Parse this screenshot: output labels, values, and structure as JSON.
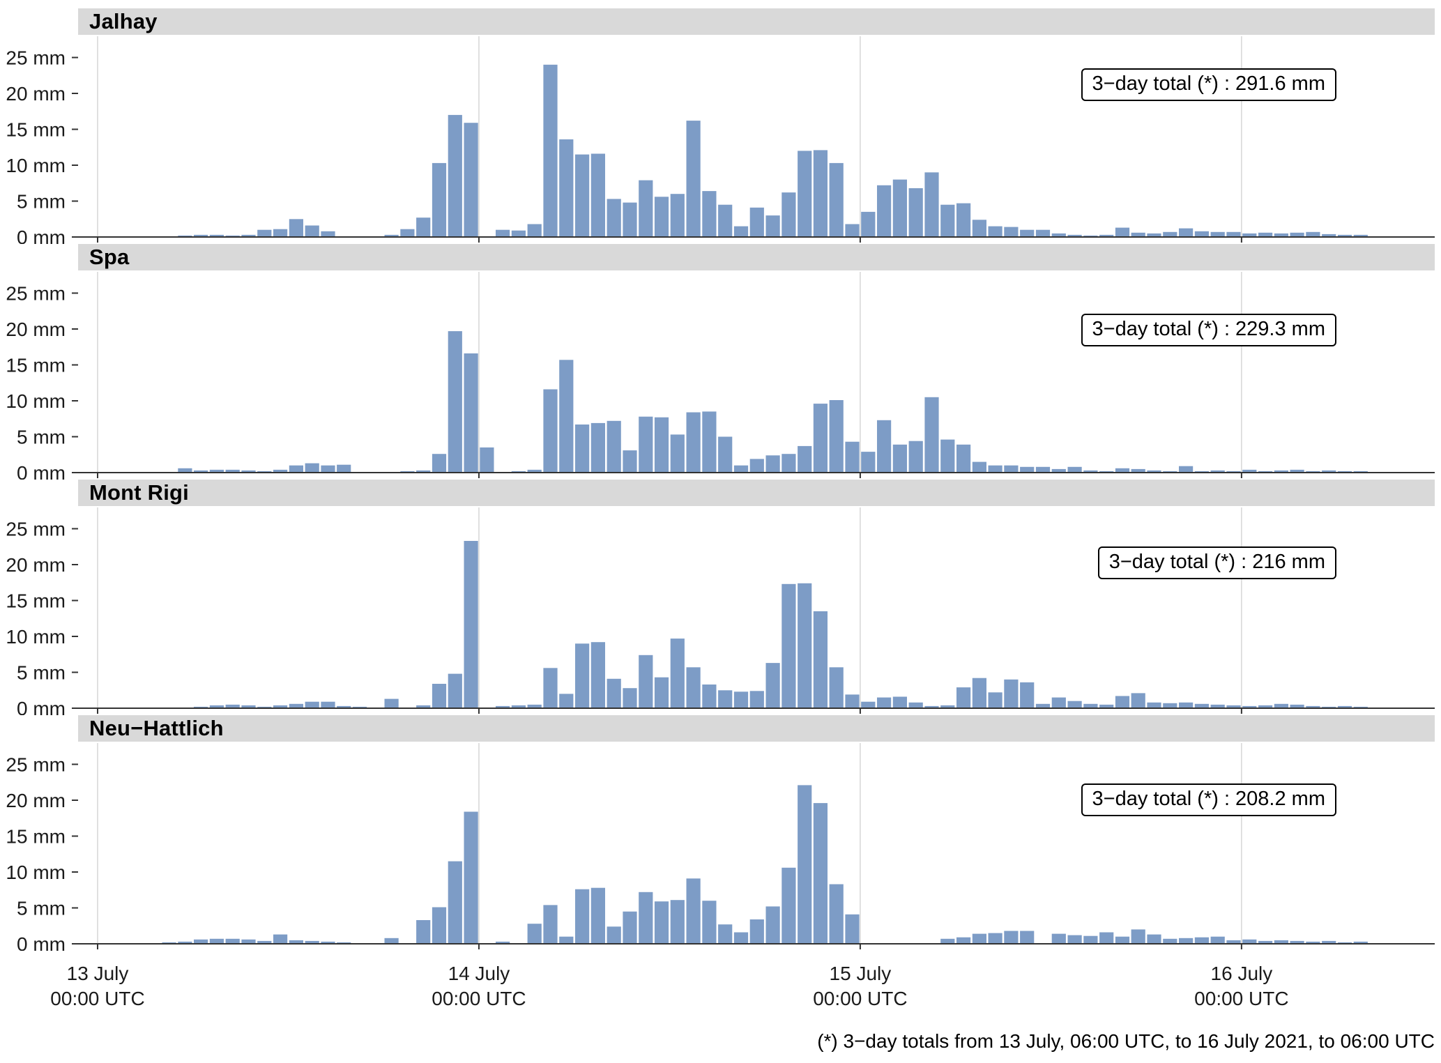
{
  "figure": {
    "footnote": "(*) 3−day totals from 13 July, 06:00 UTC, to 16 July 2021, to 06:00 UTC"
  },
  "colors": {
    "bar": "#7d9cc6",
    "strip_bg": "#d9d9d9",
    "grid": "#d6d6d6",
    "axis": "#333333"
  },
  "axis": {
    "y_ticks": [
      "0 mm",
      "5 mm",
      "10 mm",
      "15 mm",
      "20 mm",
      "25 mm"
    ],
    "ylim_mm": [
      0,
      25
    ],
    "x_ticks": [
      {
        "hour": 0,
        "date": "13 July",
        "time": "00:00 UTC"
      },
      {
        "hour": 24,
        "date": "14 July",
        "time": "00:00 UTC"
      },
      {
        "hour": 48,
        "date": "15 July",
        "time": "00:00 UTC"
      },
      {
        "hour": 72,
        "date": "16 July",
        "time": "00:00 UTC"
      }
    ]
  },
  "chart_data": [
    {
      "type": "bar",
      "station": "Jalhay",
      "total_label": "3−day total (*) : 291.6 mm",
      "total_mm": 291.6,
      "unit": "mm",
      "resolution": "hourly",
      "x_hours_from": "13 July 2021 00:00 UTC",
      "values_mm": [
        0,
        0,
        0,
        0,
        0,
        0.2,
        0.3,
        0.3,
        0.2,
        0.3,
        1.0,
        1.1,
        2.5,
        1.6,
        0.8,
        0,
        0,
        0,
        0.3,
        1.1,
        2.7,
        10.3,
        17.0,
        15.9,
        0,
        1.0,
        0.9,
        1.8,
        24.0,
        13.6,
        11.5,
        11.6,
        5.3,
        4.8,
        7.9,
        5.6,
        6.0,
        16.2,
        6.4,
        4.5,
        1.5,
        4.1,
        3.0,
        6.2,
        12.0,
        12.1,
        10.3,
        1.8,
        3.5,
        7.2,
        8.0,
        6.8,
        9.0,
        4.5,
        4.7,
        2.4,
        1.5,
        1.4,
        1.0,
        1.0,
        0.5,
        0.3,
        0.2,
        0.3,
        1.3,
        0.6,
        0.5,
        0.7,
        1.2,
        0.8,
        0.7,
        0.7,
        0.5,
        0.6,
        0.5,
        0.6,
        0.7,
        0.4,
        0.3,
        0.3
      ]
    },
    {
      "type": "bar",
      "station": "Spa",
      "total_label": "3−day total (*) : 229.3 mm",
      "total_mm": 229.3,
      "unit": "mm",
      "resolution": "hourly",
      "x_hours_from": "13 July 2021 00:00 UTC",
      "values_mm": [
        0,
        0,
        0,
        0,
        0,
        0.6,
        0.3,
        0.4,
        0.4,
        0.3,
        0.2,
        0.4,
        1.0,
        1.3,
        1.0,
        1.1,
        0,
        0,
        0,
        0.2,
        0.3,
        2.6,
        19.7,
        16.6,
        3.5,
        0,
        0.2,
        0.4,
        11.6,
        15.7,
        6.7,
        6.9,
        7.2,
        3.1,
        7.8,
        7.7,
        5.3,
        8.4,
        8.5,
        5.0,
        1.0,
        1.9,
        2.4,
        2.6,
        3.7,
        9.6,
        10.1,
        4.3,
        2.9,
        7.3,
        3.9,
        4.4,
        10.5,
        4.6,
        3.9,
        1.5,
        1.0,
        1.0,
        0.8,
        0.8,
        0.5,
        0.8,
        0.3,
        0.2,
        0.6,
        0.5,
        0.3,
        0.2,
        0.9,
        0.2,
        0.3,
        0.2,
        0.4,
        0.2,
        0.3,
        0.4,
        0.2,
        0.3,
        0.2,
        0.2
      ]
    },
    {
      "type": "bar",
      "station": "Mont Rigi",
      "total_label": "3−day total (*) : 216 mm",
      "total_mm": 216,
      "unit": "mm",
      "resolution": "hourly",
      "x_hours_from": "13 July 2021 00:00 UTC",
      "values_mm": [
        0,
        0,
        0,
        0,
        0,
        0.1,
        0.2,
        0.4,
        0.5,
        0.4,
        0.2,
        0.4,
        0.6,
        0.9,
        0.9,
        0.3,
        0.2,
        0,
        1.3,
        0.1,
        0.4,
        3.4,
        4.8,
        23.3,
        0,
        0.3,
        0.4,
        0.5,
        5.6,
        2.0,
        9.0,
        9.2,
        4.1,
        2.8,
        7.4,
        4.3,
        9.7,
        5.7,
        3.3,
        2.5,
        2.3,
        2.4,
        6.3,
        17.3,
        17.4,
        13.5,
        5.7,
        1.9,
        0.9,
        1.5,
        1.6,
        0.8,
        0.3,
        0.4,
        2.9,
        4.2,
        2.2,
        4.0,
        3.6,
        0.6,
        1.5,
        1.0,
        0.6,
        0.5,
        1.7,
        2.1,
        0.8,
        0.7,
        0.8,
        0.6,
        0.5,
        0.4,
        0.3,
        0.4,
        0.6,
        0.5,
        0.3,
        0.2,
        0.3,
        0.2
      ]
    },
    {
      "type": "bar",
      "station": "Neu−Hattlich",
      "total_label": "3−day total (*) : 208.2 mm",
      "total_mm": 208.2,
      "unit": "mm",
      "resolution": "hourly",
      "x_hours_from": "13 July 2021 00:00 UTC",
      "values_mm": [
        0,
        0,
        0,
        0,
        0.2,
        0.3,
        0.6,
        0.7,
        0.7,
        0.6,
        0.4,
        1.3,
        0.5,
        0.4,
        0.3,
        0.2,
        0.1,
        0,
        0.8,
        0,
        3.3,
        5.1,
        11.5,
        18.4,
        0,
        0.3,
        0,
        2.8,
        5.4,
        1.0,
        7.6,
        7.8,
        2.4,
        4.5,
        7.2,
        5.9,
        6.1,
        9.1,
        6.0,
        2.7,
        1.6,
        3.4,
        5.2,
        10.6,
        22.1,
        19.6,
        8.3,
        4.1,
        0,
        0,
        0,
        0,
        0,
        0.7,
        0.9,
        1.4,
        1.5,
        1.8,
        1.8,
        0,
        1.4,
        1.2,
        1.1,
        1.6,
        1.0,
        2.0,
        1.3,
        0.7,
        0.8,
        0.9,
        1.0,
        0.5,
        0.6,
        0.4,
        0.5,
        0.4,
        0.3,
        0.4,
        0.2,
        0.3
      ]
    }
  ]
}
